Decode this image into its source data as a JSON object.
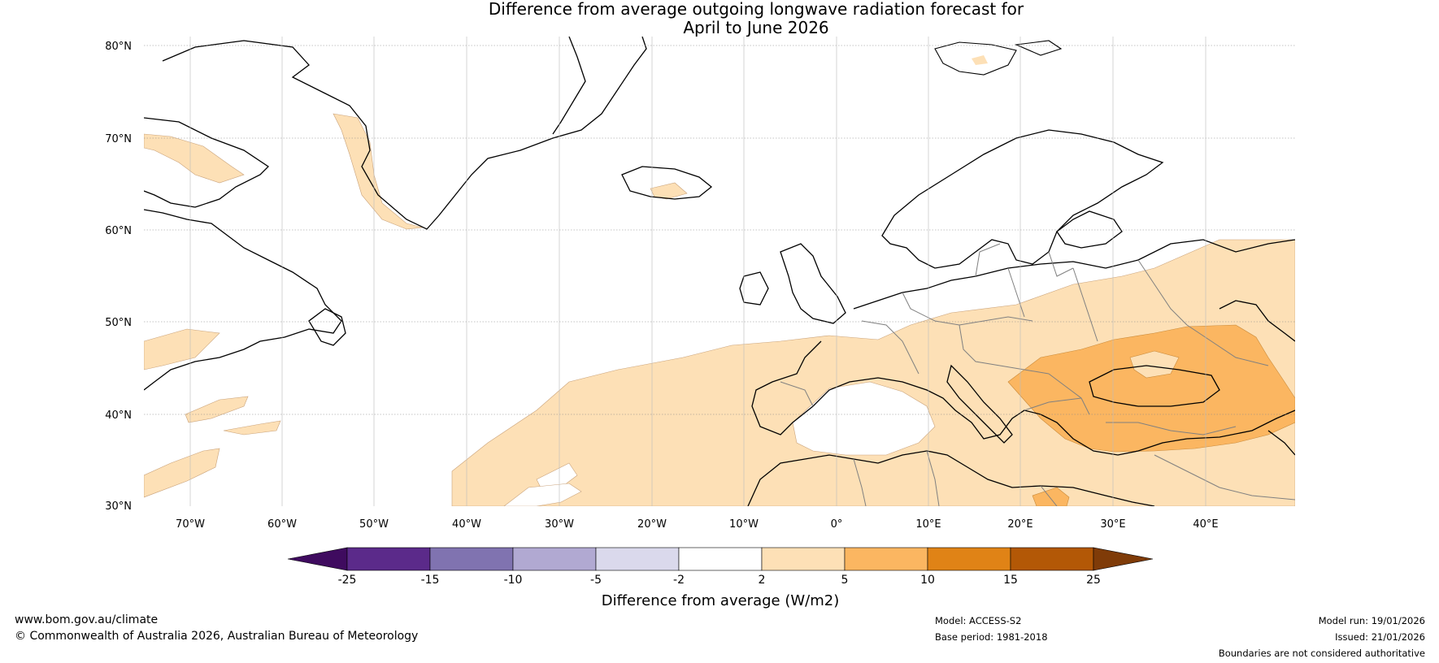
{
  "title": {
    "line1": "Difference from average outgoing longwave radiation forecast for",
    "line2": "April to June 2026"
  },
  "map": {
    "lat_labels": [
      "80°N",
      "70°N",
      "60°N",
      "50°N",
      "40°N",
      "30°N"
    ],
    "lon_labels": [
      "70°W",
      "60°W",
      "50°W",
      "40°W",
      "30°W",
      "20°W",
      "10°W",
      "0°",
      "10°E",
      "20°E",
      "30°E",
      "40°E"
    ]
  },
  "colorbar": {
    "tick_labels": [
      "-25",
      "-15",
      "-10",
      "-5",
      "-2",
      "2",
      "5",
      "10",
      "15",
      "25"
    ],
    "colors": [
      "#3f0b5f",
      "#5b2a8a",
      "#8073b0",
      "#b1a9d2",
      "#dad9ec",
      "#ffffff",
      "#fde0b6",
      "#fbb661",
      "#e08316",
      "#b35806",
      "#7f3b08"
    ],
    "label": "Difference from average (W/m2)"
  },
  "footer": {
    "website": "www.bom.gov.au/climate",
    "copyright": "© Commonwealth of Australia 2026, Australian Bureau of Meteorology",
    "model": "Model: ACCESS-S2",
    "base_period": "Base period: 1981-2018",
    "model_run": "Model run: 19/01/2026",
    "issued": "Issued: 21/01/2026",
    "disclaimer": "Boundaries are not considered authoritative"
  }
}
